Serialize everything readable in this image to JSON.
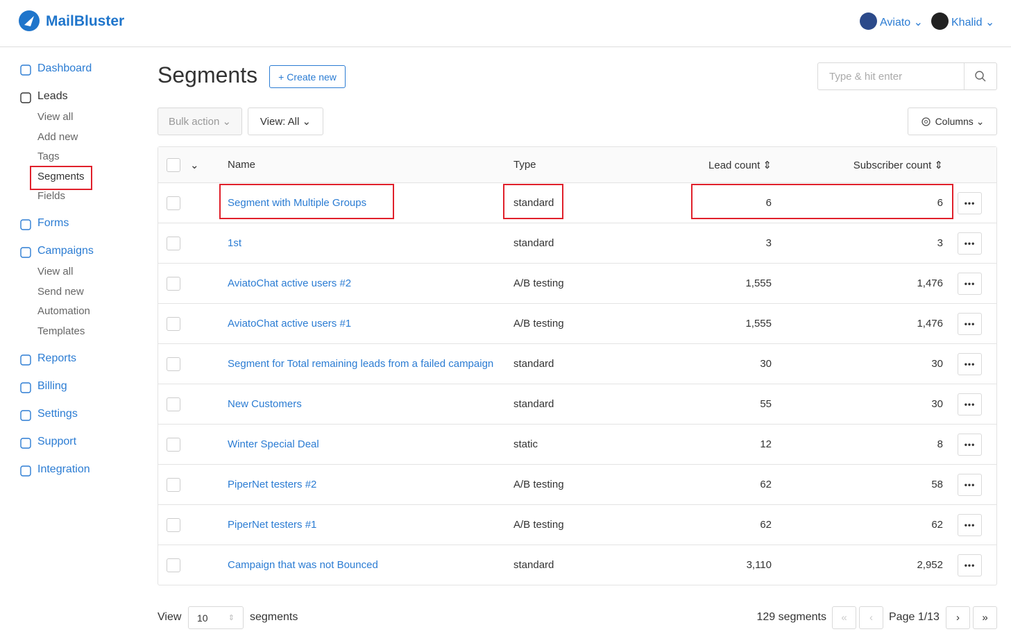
{
  "header": {
    "brand": "MailBluster",
    "workspace": "Aviato",
    "user": "Khalid"
  },
  "sidebar": [
    {
      "label": "Dashboard",
      "children": []
    },
    {
      "label": "Leads",
      "children": [
        "View all",
        "Add new",
        "Tags",
        "Segments",
        "Fields"
      ]
    },
    {
      "label": "Forms",
      "children": []
    },
    {
      "label": "Campaigns",
      "children": [
        "View all",
        "Send new",
        "Automation",
        "Templates"
      ]
    },
    {
      "label": "Reports",
      "children": []
    },
    {
      "label": "Billing",
      "children": []
    },
    {
      "label": "Settings",
      "children": []
    },
    {
      "label": "Support",
      "children": []
    },
    {
      "label": "Integration",
      "children": []
    }
  ],
  "page": {
    "title": "Segments",
    "create_button": "Create new",
    "search_placeholder": "Type & hit enter",
    "bulk_action": "Bulk action",
    "view_filter": "View: All",
    "columns_button": "Columns"
  },
  "table": {
    "headers": [
      "Name",
      "Type",
      "Lead count",
      "Subscriber count"
    ],
    "rows": [
      [
        "Segment with Multiple Groups",
        "standard",
        "6",
        "6"
      ],
      [
        "1st",
        "standard",
        "3",
        "3"
      ],
      [
        "AviatoChat active users #2",
        "A/B testing",
        "1,555",
        "1,476"
      ],
      [
        "AviatoChat active users #1",
        "A/B testing",
        "1,555",
        "1,476"
      ],
      [
        "Segment for Total remaining leads from a failed campaign",
        "standard",
        "30",
        "30"
      ],
      [
        "New Customers",
        "standard",
        "55",
        "30"
      ],
      [
        "Winter Special Deal",
        "static",
        "12",
        "8"
      ],
      [
        "PiperNet testers #2",
        "A/B testing",
        "62",
        "58"
      ],
      [
        "PiperNet testers #1",
        "A/B testing",
        "62",
        "62"
      ],
      [
        "Campaign that was not Bounced",
        "standard",
        "3,110",
        "2,952"
      ]
    ]
  },
  "footer": {
    "view_label": "View",
    "page_size": "10",
    "page_size_suffix": "segments",
    "total": "129 segments",
    "page": "Page 1/13"
  }
}
